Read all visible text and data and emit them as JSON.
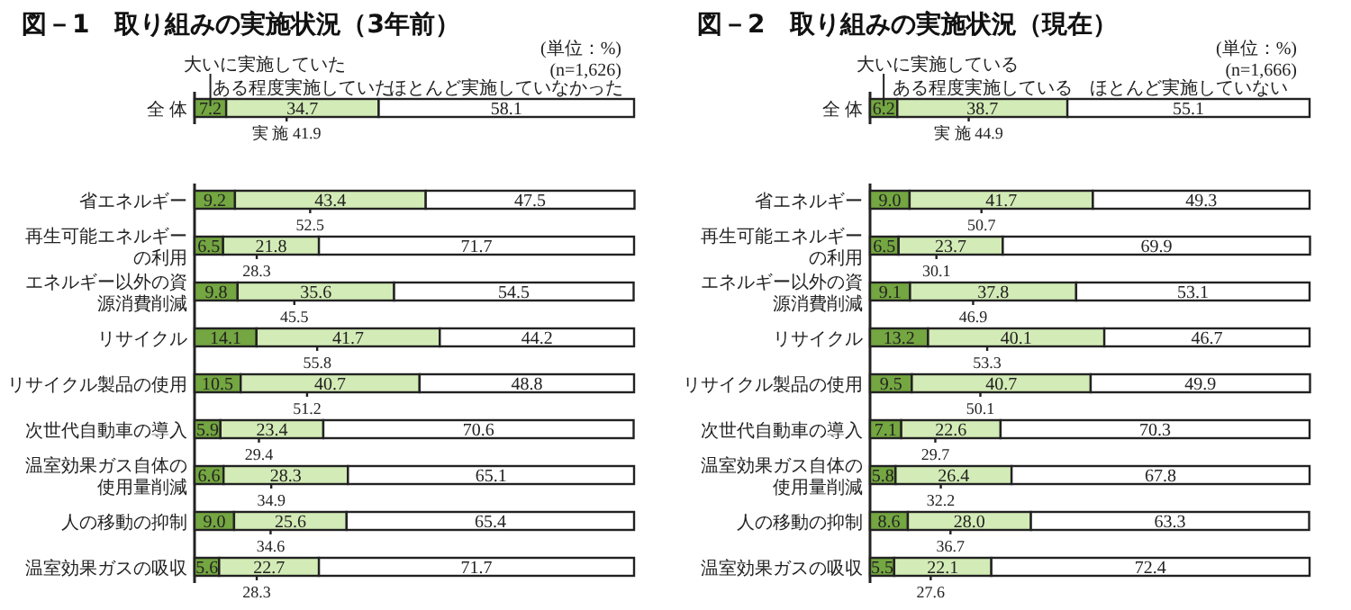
{
  "chart_data": [
    {
      "type": "bar",
      "orientation": "horizontal",
      "stacked": true,
      "title": "図－1　取り組みの実施状況（3年前）",
      "xlim": [
        0,
        100
      ],
      "categories": [
        "全 体",
        null,
        "省エネルギー",
        "再生可能エネルギーの利用",
        "エネルギー以外の資源消費削減",
        "リサイクル",
        "リサイクル製品の使用",
        "次世代自動車の導入",
        "温室効果ガス自体の使用量削減",
        "人の移動の抑制",
        "温室効果ガスの吸収"
      ],
      "series": [
        {
          "name": "大いに実施していた",
          "color": "#74a641",
          "values": [
            7.2,
            null,
            9.2,
            6.5,
            9.8,
            14.1,
            10.5,
            5.9,
            6.6,
            9.0,
            5.6
          ],
          "value_labels": [
            "7.2",
            null,
            "9.2",
            "6.5",
            "9.8",
            "14.1",
            "10.5",
            "5.9",
            "6.6",
            "9.0",
            "5.6"
          ]
        },
        {
          "name": "ある程度実施していた",
          "color": "#d3ebb6",
          "values": [
            34.7,
            null,
            43.4,
            21.8,
            35.6,
            41.7,
            40.7,
            23.4,
            28.3,
            25.6,
            22.7
          ],
          "value_labels": [
            "34.7",
            null,
            "43.4",
            "21.8",
            "35.6",
            "41.7",
            "40.7",
            "23.4",
            "28.3",
            "25.6",
            "22.7"
          ]
        },
        {
          "name": "ほとんど実施していなかった",
          "color": "#ffffff",
          "values": [
            58.1,
            null,
            47.5,
            71.7,
            54.5,
            44.2,
            48.8,
            70.6,
            65.1,
            65.4,
            71.7
          ],
          "value_labels": [
            "58.1",
            null,
            "47.5",
            "71.7",
            "54.5",
            "44.2",
            "48.8",
            "70.6",
            "65.1",
            "65.4",
            "71.7"
          ]
        }
      ],
      "annotations": [
        "(単位：%)",
        "(n=1,626)",
        {
          "text": "実 施 41.9",
          "y": "全 体"
        },
        {
          "text": "52.5",
          "y": "省エネルギー"
        },
        {
          "text": "28.3",
          "y": "再生可能エネルギーの利用"
        },
        {
          "text": "45.5",
          "y": "エネルギー以外の資源消費削減"
        },
        {
          "text": "55.8",
          "y": "リサイクル"
        },
        {
          "text": "51.2",
          "y": "リサイクル製品の使用"
        },
        {
          "text": "29.4",
          "y": "次世代自動車の導入"
        },
        {
          "text": "34.9",
          "y": "温室効果ガス自体の使用量削減"
        },
        {
          "text": "34.6",
          "y": "人の移動の抑制"
        },
        {
          "text": "28.3",
          "y": "温室効果ガスの吸収"
        }
      ]
    },
    {
      "type": "bar",
      "orientation": "horizontal",
      "stacked": true,
      "title": "図－2　取り組みの実施状況（現在）",
      "xlim": [
        0,
        100
      ],
      "categories": [
        "全 体",
        null,
        "省エネルギー",
        "再生可能エネルギーの利用",
        "エネルギー以外の資源消費削減",
        "リサイクル",
        "リサイクル製品の使用",
        "次世代自動車の導入",
        "温室効果ガス自体の使用量削減",
        "人の移動の抑制",
        "温室効果ガスの吸収"
      ],
      "series": [
        {
          "name": "大いに実施している",
          "color": "#74a641",
          "values": [
            6.2,
            null,
            9.0,
            6.5,
            9.1,
            13.2,
            9.5,
            7.1,
            5.8,
            8.6,
            5.5
          ],
          "value_labels": [
            "6.2",
            null,
            "9.0",
            "6.5",
            "9.1",
            "13.2",
            "9.5",
            "7.1",
            "5.8",
            "8.6",
            "5.5"
          ]
        },
        {
          "name": "ある程度実施している",
          "color": "#d3ebb6",
          "values": [
            38.7,
            null,
            41.7,
            23.7,
            37.8,
            40.1,
            40.7,
            22.6,
            26.4,
            28.0,
            22.1
          ],
          "value_labels": [
            "38.7",
            null,
            "41.7",
            "23.7",
            "37.8",
            "40.1",
            "40.7",
            "22.6",
            "26.4",
            "28.0",
            "22.1"
          ]
        },
        {
          "name": "ほとんど実施していない",
          "color": "#ffffff",
          "values": [
            55.1,
            null,
            49.3,
            69.9,
            53.1,
            46.7,
            49.9,
            70.3,
            67.8,
            63.3,
            72.4
          ],
          "value_labels": [
            "55.1",
            null,
            "49.3",
            "69.9",
            "53.1",
            "46.7",
            "49.9",
            "70.3",
            "67.8",
            "63.3",
            "72.4"
          ]
        }
      ],
      "annotations": [
        "(単位：%)",
        "(n=1,666)",
        {
          "text": "実 施 44.9",
          "y": "全 体"
        },
        {
          "text": "50.7",
          "y": "省エネルギー"
        },
        {
          "text": "30.1",
          "y": "再生可能エネルギーの利用"
        },
        {
          "text": "46.9",
          "y": "エネルギー以外の資源消費削減"
        },
        {
          "text": "53.3",
          "y": "リサイクル"
        },
        {
          "text": "50.1",
          "y": "リサイクル製品の使用"
        },
        {
          "text": "29.7",
          "y": "次世代自動車の導入"
        },
        {
          "text": "32.2",
          "y": "温室効果ガス自体の使用量削減"
        },
        {
          "text": "36.7",
          "y": "人の移動の抑制"
        },
        {
          "text": "27.6",
          "y": "温室効果ガスの吸収"
        }
      ]
    }
  ]
}
